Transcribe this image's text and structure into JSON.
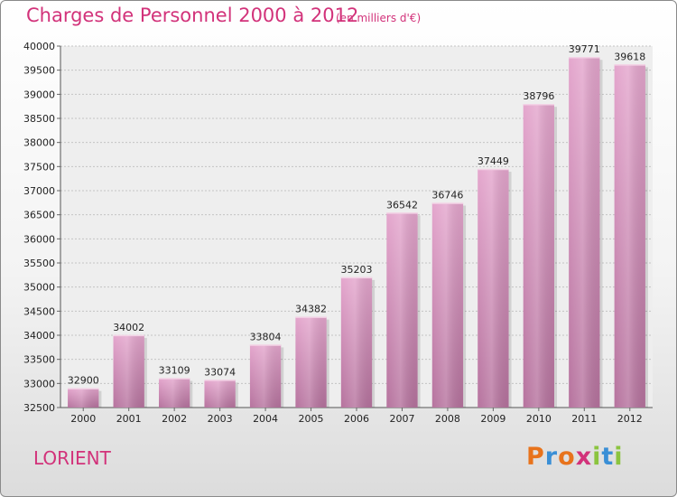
{
  "header": {
    "title": "Charges de Personnel 2000 à 2012",
    "subtitle": "(en milliers d'€)"
  },
  "footer": {
    "city": "LORIENT",
    "brand": "Proxiti",
    "brand_colors": [
      "#e8731c",
      "#3a8fd6",
      "#e8731c",
      "#d2327a",
      "#8bc43f",
      "#3a8fd6",
      "#8bc43f"
    ]
  },
  "chart_data": {
    "type": "bar",
    "categories": [
      "2000",
      "2001",
      "2002",
      "2003",
      "2004",
      "2005",
      "2006",
      "2007",
      "2008",
      "2009",
      "2010",
      "2011",
      "2012"
    ],
    "values": [
      32900,
      34002,
      33109,
      33074,
      33804,
      34382,
      35203,
      36542,
      36746,
      37449,
      38796,
      39771,
      39618
    ],
    "title": "Charges de Personnel 2000 à 2012",
    "ylim": [
      32500,
      40000
    ],
    "yticks": [
      32500,
      33000,
      33500,
      34000,
      34500,
      35000,
      35500,
      36000,
      36500,
      37000,
      37500,
      38000,
      38500,
      39000,
      39500,
      40000
    ],
    "grid": true,
    "bar_color": "#d98fbd"
  }
}
